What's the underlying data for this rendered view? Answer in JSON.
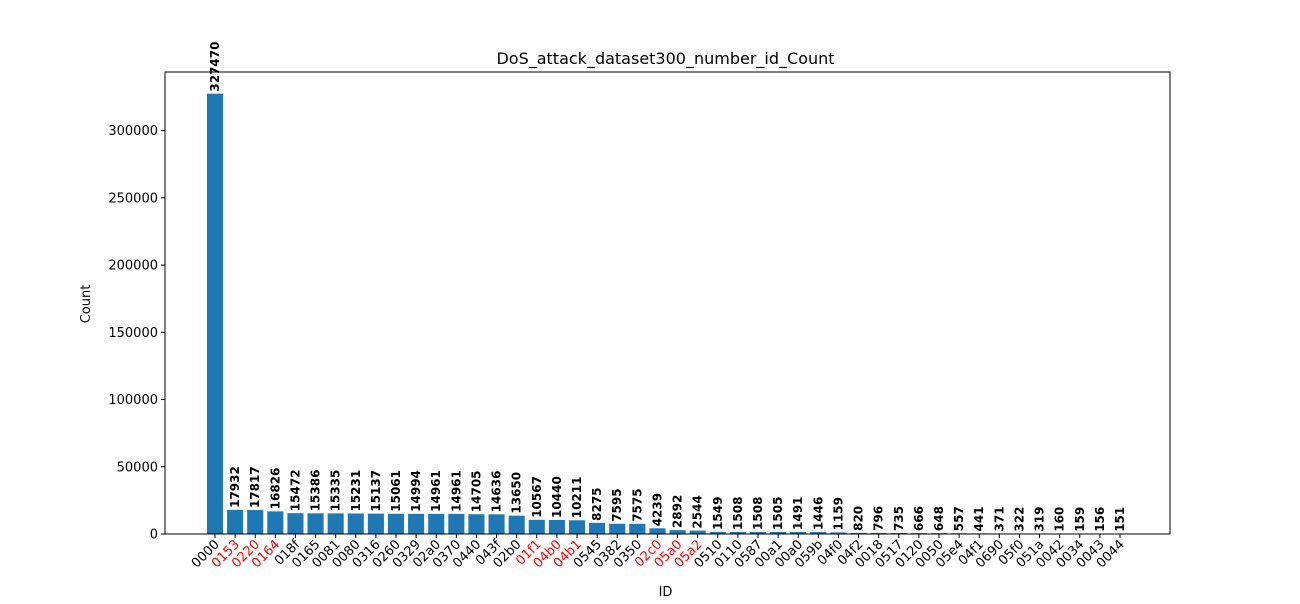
{
  "chart_data": {
    "type": "bar",
    "title": "DoS_attack_dataset300_number_id_Count",
    "xlabel": "ID",
    "ylabel": "Count",
    "ylim": [
      0,
      343580
    ],
    "yticks": [
      0,
      50000,
      100000,
      150000,
      200000,
      250000,
      300000
    ],
    "grid": false,
    "bar_color": "#1f77b4",
    "highlight_label_color": "#ff0000",
    "categories": [
      "0000",
      "0153",
      "0220",
      "0164",
      "018f",
      "0165",
      "0081",
      "0080",
      "0316",
      "0260",
      "0329",
      "02a0",
      "0370",
      "0440",
      "043f",
      "02b0",
      "01f1",
      "04b0",
      "04b1",
      "0545",
      "0382",
      "0350",
      "02c0",
      "05a0",
      "05a2",
      "0510",
      "0110",
      "0587",
      "00a1",
      "00a0",
      "059b",
      "04f0",
      "04f2",
      "0018",
      "0517",
      "0120",
      "0050",
      "05e4",
      "04f1",
      "0690",
      "05f0",
      "051a",
      "0042",
      "0034",
      "0043",
      "0044"
    ],
    "values": [
      327470,
      17932,
      17817,
      16826,
      15472,
      15386,
      15335,
      15231,
      15137,
      15061,
      14994,
      14961,
      14961,
      14705,
      14636,
      13650,
      10567,
      10440,
      10211,
      8275,
      7595,
      7575,
      4239,
      2892,
      2544,
      1549,
      1508,
      1508,
      1505,
      1491,
      1446,
      1159,
      820,
      796,
      735,
      666,
      648,
      557,
      441,
      371,
      322,
      319,
      160,
      159,
      156,
      151
    ],
    "highlighted_categories": [
      "0153",
      "0220",
      "0164",
      "01f1",
      "04b0",
      "04b1",
      "02c0",
      "05a0",
      "05a2"
    ]
  }
}
